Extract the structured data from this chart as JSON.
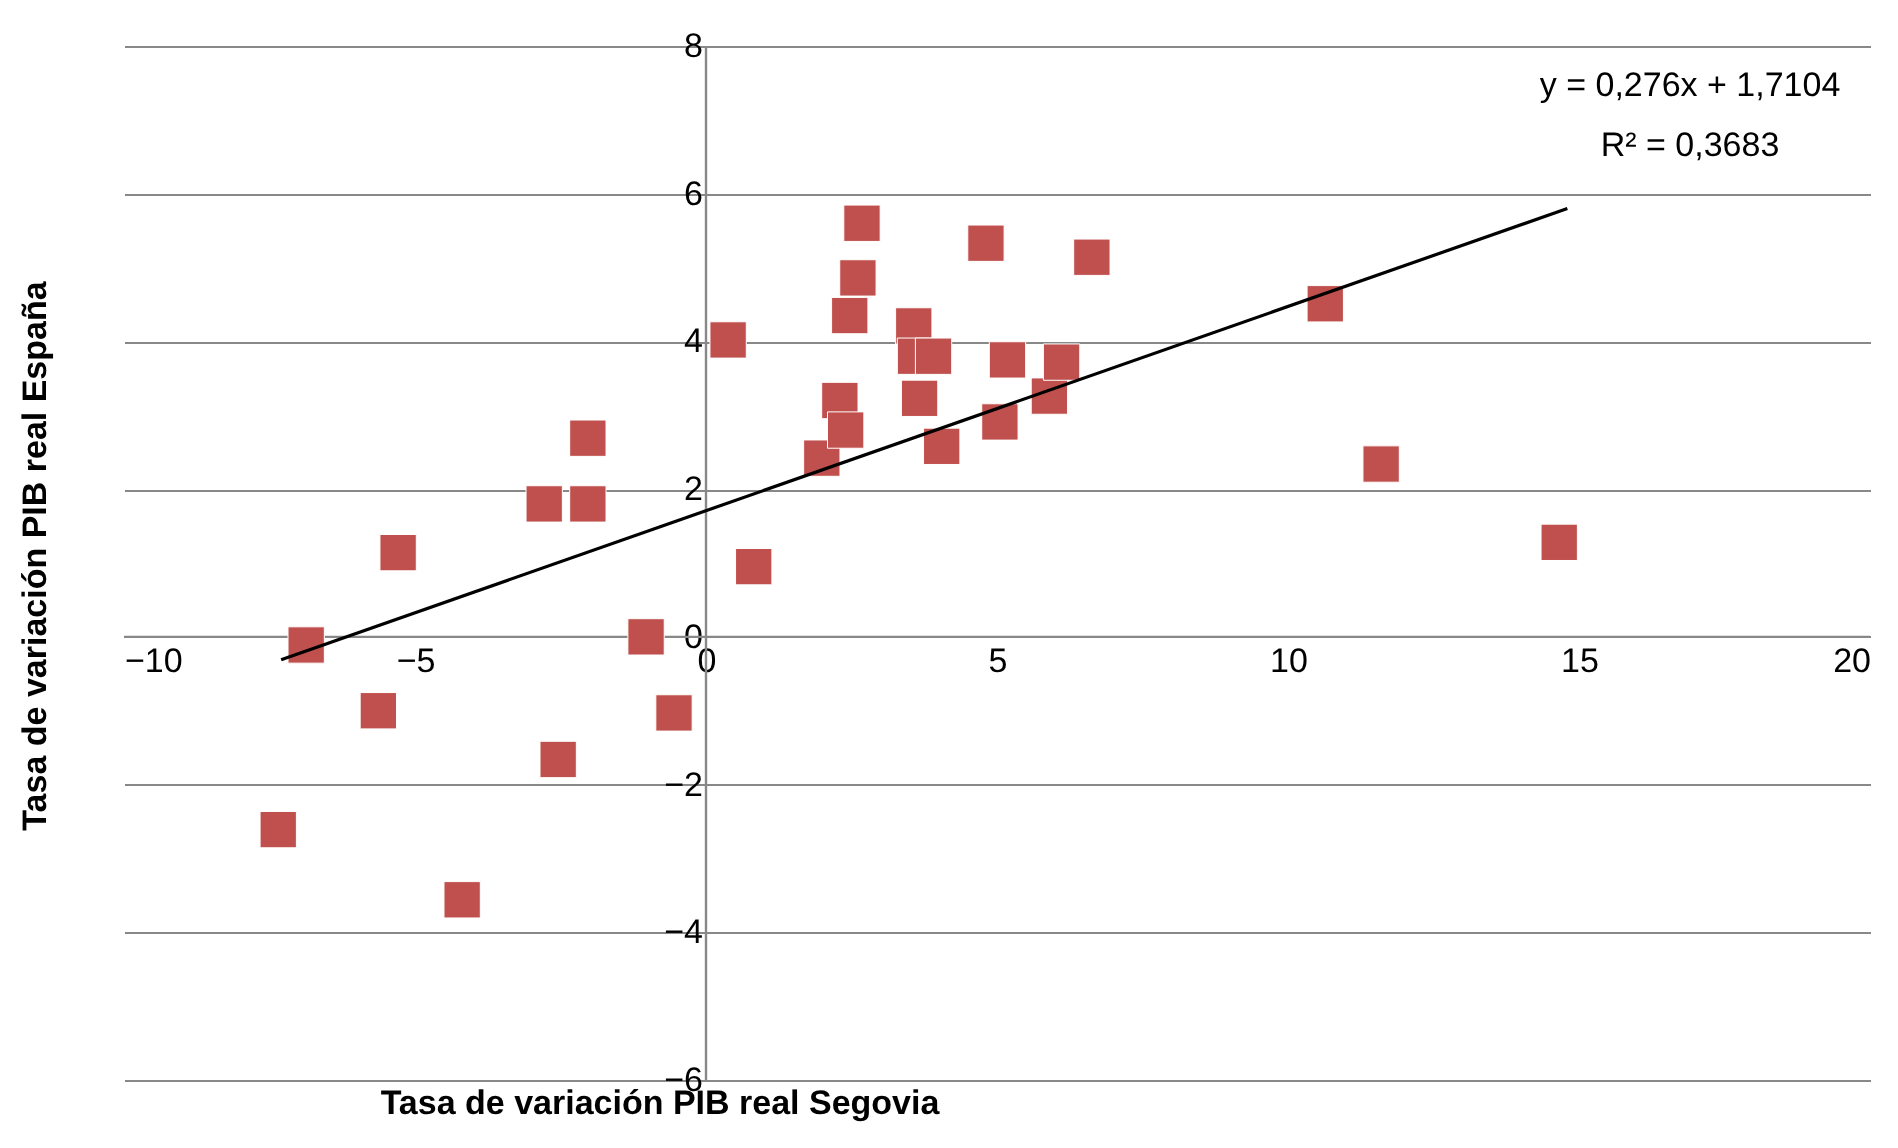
{
  "chart_data": {
    "type": "scatter",
    "xlabel": "Tasa de variación PIB real Segovia",
    "ylabel": "Tasa de variación PIB real España",
    "annotations": [
      "y = 0,276x + 1,7104",
      "R² = 0,3683"
    ],
    "xlim": [
      -10,
      20
    ],
    "xticks": [
      -10,
      -5,
      0,
      5,
      10,
      15,
      20
    ],
    "ylim": [
      -6,
      8
    ],
    "yticks": [
      -6,
      -4,
      -2,
      0,
      2,
      4,
      6,
      8
    ],
    "grid": "y",
    "marker": "square",
    "series": [
      {
        "color": "#c0504d",
        "x": [
          -6.87,
          -5.29,
          -5.63,
          -7.35,
          -4.19,
          -2.78,
          -2.03,
          -2.03,
          -2.54,
          -1.03,
          -0.55,
          0.38,
          0.82,
          1.99,
          2.3,
          2.4,
          2.47,
          2.61,
          2.68,
          3.57,
          3.6,
          3.91,
          3.67,
          4.05,
          4.81,
          5.18,
          5.05,
          5.9,
          6.11,
          6.63,
          10.64,
          11.6,
          14.66
        ],
        "values": [
          -0.11,
          1.14,
          -1.0,
          -2.61,
          -3.56,
          1.8,
          1.8,
          2.69,
          -1.66,
          0.0,
          -1.03,
          4.02,
          0.95,
          2.42,
          3.2,
          2.8,
          4.35,
          4.86,
          5.6,
          4.21,
          3.8,
          3.8,
          3.23,
          2.58,
          5.33,
          3.75,
          2.91,
          3.26,
          3.72,
          5.14,
          4.51,
          2.34,
          1.28
        ]
      },
      {
        "type": "line",
        "color": "#000000",
        "marker": "none",
        "line_style": "solid",
        "x": [
          -7.3,
          14.8
        ],
        "values": [
          -0.31,
          5.8
        ]
      }
    ]
  }
}
